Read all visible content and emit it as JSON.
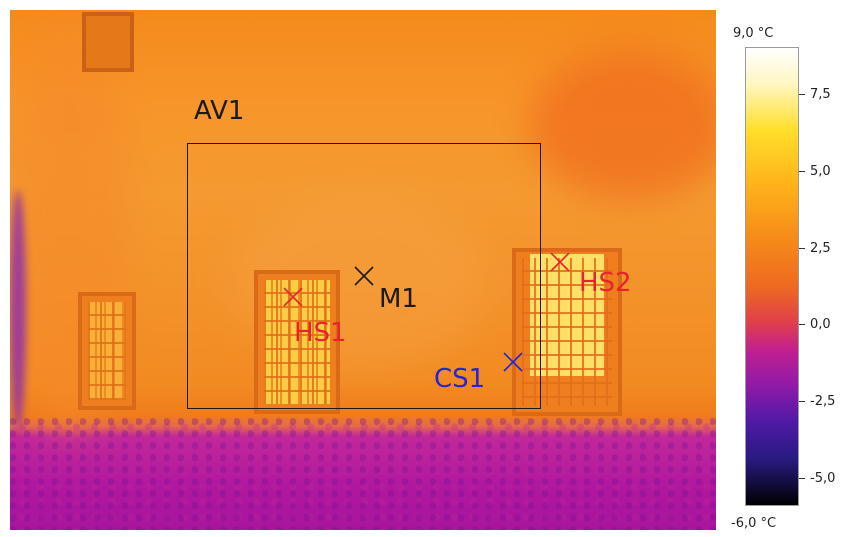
{
  "image": {
    "annotations": {
      "roi_label": "AV1",
      "points": [
        {
          "id": "HS1",
          "label": "HS1",
          "color": "#e8232a"
        },
        {
          "id": "M1",
          "label": "M1",
          "color": "#1a1a1a"
        },
        {
          "id": "HS2",
          "label": "HS2",
          "color": "#e8232a"
        },
        {
          "id": "CS1",
          "label": "CS1",
          "color": "#2424d8"
        }
      ]
    }
  },
  "scale": {
    "max_label": "9,0 °C",
    "min_label": "-6,0 °C",
    "ticks": [
      "7,5",
      "5,0",
      "2,5",
      "0,0",
      "-2,5",
      "-5,0"
    ]
  }
}
